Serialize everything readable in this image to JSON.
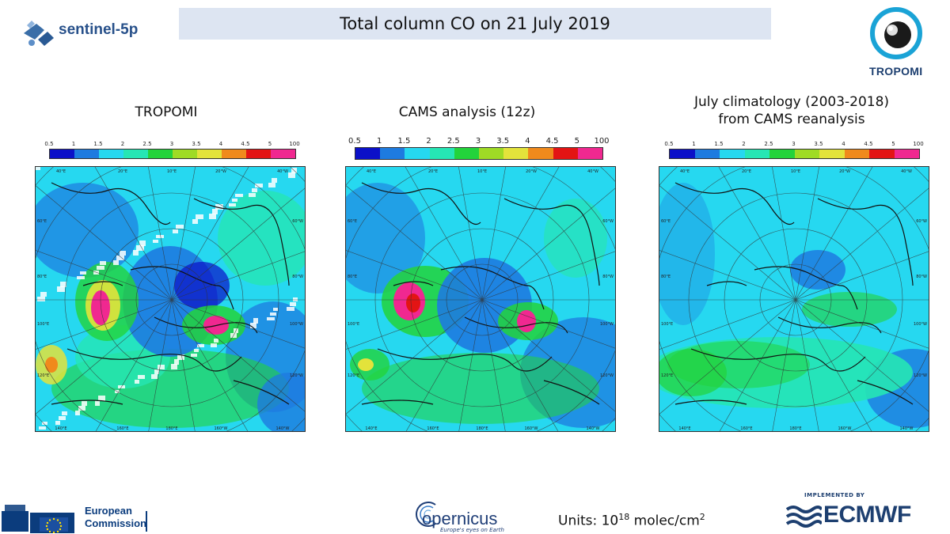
{
  "header": {
    "title": "Total column CO on 21 July 2019",
    "sentinel_logo_text": "sentinel-5p",
    "tropomi_logo_text": "TROPOMI"
  },
  "panels": [
    {
      "title": "TROPOMI"
    },
    {
      "title": "CAMS analysis (12z)"
    },
    {
      "title_line1": "July climatology (2003-2018)",
      "title_line2": "from CAMS reanalysis"
    }
  ],
  "colorbar": {
    "tick_labels": [
      "0.5",
      "1",
      "1.5",
      "2",
      "2.5",
      "3",
      "3.5",
      "4",
      "4.5",
      "5",
      "100"
    ],
    "colors": [
      "#0b10c8",
      "#1e7be0",
      "#26d8f0",
      "#26e6b4",
      "#23d33b",
      "#9fdb25",
      "#e3e33b",
      "#f08a1c",
      "#e31414",
      "#f02890"
    ]
  },
  "map_labels": {
    "top": [
      "40°E",
      "20°E",
      "10°E",
      "20°W",
      "40°W"
    ],
    "bottom": [
      "140°E",
      "160°E",
      "180°E",
      "160°W",
      "140°W"
    ],
    "left": [
      "60°E",
      "80°E",
      "100°E",
      "120°E"
    ],
    "right": [
      "60°W",
      "80°W",
      "100°W",
      "120°W"
    ]
  },
  "footer": {
    "ec_line1": "European",
    "ec_line2": "Commission",
    "copernicus_name": "opernicus",
    "copernicus_tag": "Europe's eyes on Earth",
    "units_prefix": "Units: 10",
    "units_exp": "18",
    "units_mid": " molec/cm",
    "units_sup2": "2",
    "ecmwf_implemented": "IMPLEMENTED BY",
    "ecmwf_name": "ECMWF"
  }
}
